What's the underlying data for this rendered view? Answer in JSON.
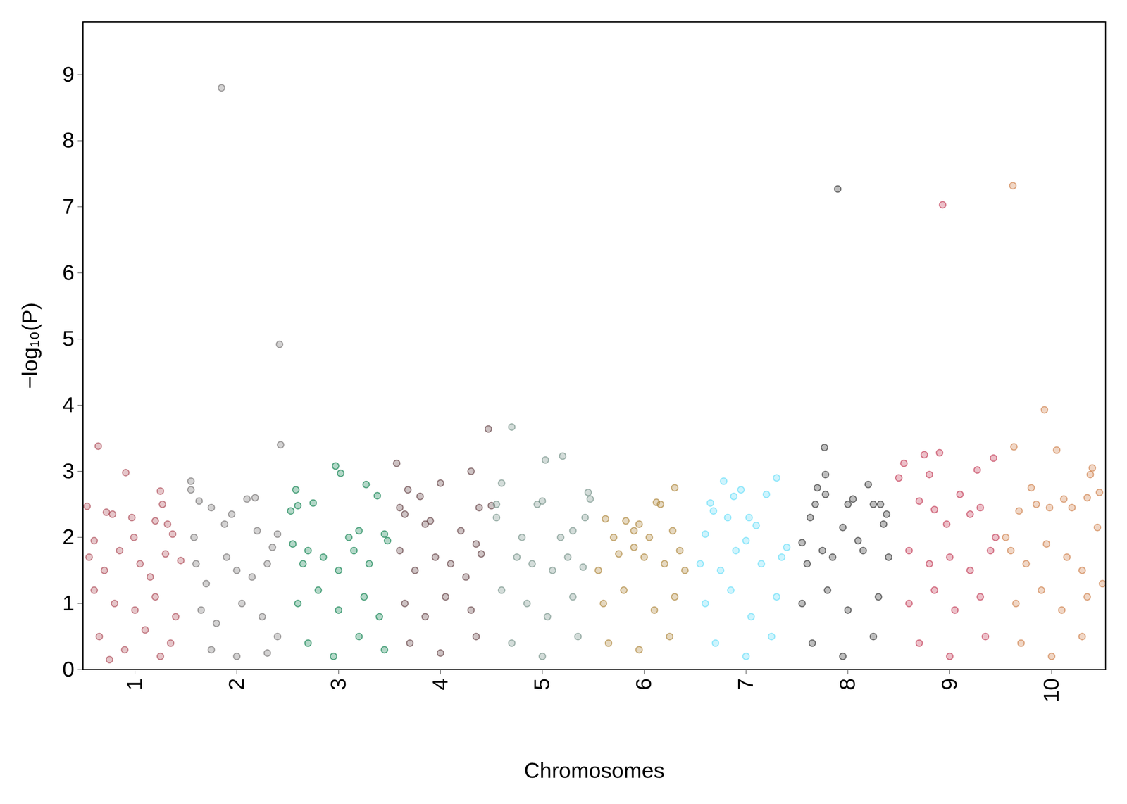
{
  "chart_data": {
    "type": "scatter",
    "x_label": "Chromosomes",
    "y_label": "−log₁₀(P)",
    "xlim": [
      0.49,
      10.53
    ],
    "xticks": [
      1,
      2,
      3,
      4,
      5,
      6,
      7,
      8,
      9,
      10
    ],
    "ylim": [
      0,
      9.8
    ],
    "yticks": [
      0,
      1,
      2,
      3,
      4,
      5,
      6,
      7,
      8,
      9
    ],
    "grid": false,
    "marker": "circle",
    "series": [
      {
        "color": "#a8404c",
        "points": [
          [
            0.53,
            2.47
          ],
          [
            0.64,
            3.38
          ],
          [
            0.6,
            1.95
          ],
          [
            0.72,
            2.38
          ],
          [
            0.78,
            2.35
          ],
          [
            0.91,
            2.98
          ],
          [
            0.97,
            2.3
          ],
          [
            0.99,
            2.0
          ],
          [
            1.25,
            2.7
          ],
          [
            1.27,
            2.5
          ],
          [
            1.2,
            2.25
          ],
          [
            1.32,
            2.2
          ],
          [
            1.37,
            2.05
          ],
          [
            0.55,
            1.7
          ],
          [
            0.7,
            1.5
          ],
          [
            0.85,
            1.8
          ],
          [
            1.05,
            1.6
          ],
          [
            1.15,
            1.4
          ],
          [
            1.3,
            1.75
          ],
          [
            1.45,
            1.65
          ],
          [
            0.6,
            1.2
          ],
          [
            0.8,
            1.0
          ],
          [
            1.0,
            0.9
          ],
          [
            1.2,
            1.1
          ],
          [
            1.4,
            0.8
          ],
          [
            0.65,
            0.5
          ],
          [
            0.9,
            0.3
          ],
          [
            1.1,
            0.6
          ],
          [
            1.35,
            0.4
          ],
          [
            0.75,
            0.15
          ],
          [
            1.25,
            0.2
          ]
        ]
      },
      {
        "color": "#6e6a6b",
        "points": [
          [
            1.55,
            2.85
          ],
          [
            1.55,
            2.72
          ],
          [
            1.63,
            2.55
          ],
          [
            1.58,
            2.0
          ],
          [
            1.75,
            2.45
          ],
          [
            1.85,
            8.8
          ],
          [
            1.88,
            2.2
          ],
          [
            1.95,
            2.35
          ],
          [
            2.1,
            2.58
          ],
          [
            2.18,
            2.6
          ],
          [
            2.2,
            2.1
          ],
          [
            2.35,
            1.85
          ],
          [
            2.42,
            4.92
          ],
          [
            2.43,
            3.4
          ],
          [
            2.4,
            2.05
          ],
          [
            1.6,
            1.6
          ],
          [
            1.7,
            1.3
          ],
          [
            1.9,
            1.7
          ],
          [
            2.0,
            1.5
          ],
          [
            2.15,
            1.4
          ],
          [
            2.3,
            1.6
          ],
          [
            1.65,
            0.9
          ],
          [
            1.8,
            0.7
          ],
          [
            2.05,
            1.0
          ],
          [
            2.25,
            0.8
          ],
          [
            2.4,
            0.5
          ],
          [
            1.75,
            0.3
          ],
          [
            2.0,
            0.2
          ],
          [
            2.3,
            0.25
          ]
        ]
      },
      {
        "color": "#007a45",
        "points": [
          [
            2.53,
            2.4
          ],
          [
            2.58,
            2.72
          ],
          [
            2.6,
            2.48
          ],
          [
            2.7,
            1.8
          ],
          [
            2.75,
            2.52
          ],
          [
            2.97,
            3.08
          ],
          [
            3.02,
            2.97
          ],
          [
            3.1,
            2.0
          ],
          [
            3.27,
            2.8
          ],
          [
            3.38,
            2.63
          ],
          [
            3.45,
            2.05
          ],
          [
            3.2,
            2.1
          ],
          [
            2.55,
            1.9
          ],
          [
            2.65,
            1.6
          ],
          [
            2.85,
            1.7
          ],
          [
            3.0,
            1.5
          ],
          [
            3.15,
            1.8
          ],
          [
            3.3,
            1.6
          ],
          [
            3.48,
            1.95
          ],
          [
            2.6,
            1.0
          ],
          [
            2.8,
            1.2
          ],
          [
            3.0,
            0.9
          ],
          [
            3.25,
            1.1
          ],
          [
            3.4,
            0.8
          ],
          [
            2.7,
            0.4
          ],
          [
            2.95,
            0.2
          ],
          [
            3.2,
            0.5
          ],
          [
            3.45,
            0.3
          ]
        ]
      },
      {
        "color": "#5a3538",
        "points": [
          [
            3.57,
            3.12
          ],
          [
            3.6,
            2.45
          ],
          [
            3.65,
            2.35
          ],
          [
            3.68,
            2.72
          ],
          [
            3.8,
            2.62
          ],
          [
            3.85,
            2.2
          ],
          [
            3.9,
            2.25
          ],
          [
            4.0,
            2.82
          ],
          [
            4.3,
            3.0
          ],
          [
            4.38,
            2.45
          ],
          [
            4.47,
            3.64
          ],
          [
            4.5,
            2.48
          ],
          [
            4.2,
            2.1
          ],
          [
            4.35,
            1.9
          ],
          [
            3.6,
            1.8
          ],
          [
            3.75,
            1.5
          ],
          [
            3.95,
            1.7
          ],
          [
            4.1,
            1.6
          ],
          [
            4.25,
            1.4
          ],
          [
            4.4,
            1.75
          ],
          [
            3.65,
            1.0
          ],
          [
            3.85,
            0.8
          ],
          [
            4.05,
            1.1
          ],
          [
            4.3,
            0.9
          ],
          [
            3.7,
            0.4
          ],
          [
            4.0,
            0.25
          ],
          [
            4.35,
            0.5
          ]
        ]
      },
      {
        "color": "#6e8c82",
        "points": [
          [
            4.55,
            2.5
          ],
          [
            4.6,
            2.82
          ],
          [
            4.7,
            3.67
          ],
          [
            4.55,
            2.3
          ],
          [
            4.8,
            2.0
          ],
          [
            4.75,
            1.7
          ],
          [
            4.95,
            2.5
          ],
          [
            5.0,
            2.55
          ],
          [
            5.03,
            3.17
          ],
          [
            5.2,
            3.23
          ],
          [
            5.18,
            2.0
          ],
          [
            5.3,
            2.1
          ],
          [
            5.45,
            2.68
          ],
          [
            5.47,
            2.58
          ],
          [
            5.42,
            2.3
          ],
          [
            4.9,
            1.6
          ],
          [
            5.1,
            1.5
          ],
          [
            5.25,
            1.7
          ],
          [
            5.4,
            1.55
          ],
          [
            4.6,
            1.2
          ],
          [
            4.85,
            1.0
          ],
          [
            5.05,
            0.8
          ],
          [
            5.3,
            1.1
          ],
          [
            4.7,
            0.4
          ],
          [
            5.0,
            0.2
          ],
          [
            5.35,
            0.5
          ]
        ]
      },
      {
        "color": "#a87e2e",
        "points": [
          [
            5.62,
            2.28
          ],
          [
            5.7,
            2.0
          ],
          [
            5.82,
            2.25
          ],
          [
            5.9,
            2.1
          ],
          [
            5.95,
            2.2
          ],
          [
            6.05,
            2.0
          ],
          [
            6.12,
            2.53
          ],
          [
            6.16,
            2.5
          ],
          [
            6.3,
            2.75
          ],
          [
            6.28,
            2.1
          ],
          [
            6.35,
            1.8
          ],
          [
            5.55,
            1.5
          ],
          [
            5.75,
            1.75
          ],
          [
            5.9,
            1.85
          ],
          [
            6.0,
            1.7
          ],
          [
            6.2,
            1.6
          ],
          [
            6.4,
            1.5
          ],
          [
            5.6,
            1.0
          ],
          [
            5.8,
            1.2
          ],
          [
            6.1,
            0.9
          ],
          [
            6.3,
            1.1
          ],
          [
            5.65,
            0.4
          ],
          [
            5.95,
            0.3
          ],
          [
            6.25,
            0.5
          ]
        ]
      },
      {
        "color": "#5ddcf8",
        "points": [
          [
            6.6,
            2.05
          ],
          [
            6.65,
            2.52
          ],
          [
            6.68,
            2.4
          ],
          [
            6.78,
            2.85
          ],
          [
            6.82,
            2.3
          ],
          [
            6.88,
            2.62
          ],
          [
            6.95,
            2.72
          ],
          [
            7.0,
            1.95
          ],
          [
            7.03,
            2.3
          ],
          [
            7.2,
            2.65
          ],
          [
            7.3,
            2.9
          ],
          [
            7.1,
            2.18
          ],
          [
            7.4,
            1.85
          ],
          [
            6.55,
            1.6
          ],
          [
            6.75,
            1.5
          ],
          [
            6.9,
            1.8
          ],
          [
            7.15,
            1.6
          ],
          [
            7.35,
            1.7
          ],
          [
            6.6,
            1.0
          ],
          [
            6.85,
            1.2
          ],
          [
            7.05,
            0.8
          ],
          [
            7.3,
            1.1
          ],
          [
            6.7,
            0.4
          ],
          [
            7.0,
            0.2
          ],
          [
            7.25,
            0.5
          ]
        ]
      },
      {
        "color": "#262626",
        "points": [
          [
            7.55,
            1.92
          ],
          [
            7.63,
            2.3
          ],
          [
            7.7,
            2.75
          ],
          [
            7.68,
            2.5
          ],
          [
            7.77,
            3.36
          ],
          [
            7.78,
            2.95
          ],
          [
            7.78,
            2.65
          ],
          [
            7.9,
            7.27
          ],
          [
            7.95,
            2.15
          ],
          [
            8.0,
            2.5
          ],
          [
            8.05,
            2.58
          ],
          [
            8.2,
            2.8
          ],
          [
            8.25,
            2.5
          ],
          [
            8.32,
            2.5
          ],
          [
            8.35,
            2.2
          ],
          [
            8.38,
            2.35
          ],
          [
            8.1,
            1.95
          ],
          [
            7.6,
            1.6
          ],
          [
            7.75,
            1.8
          ],
          [
            7.85,
            1.7
          ],
          [
            8.15,
            1.8
          ],
          [
            8.4,
            1.7
          ],
          [
            7.55,
            1.0
          ],
          [
            7.8,
            1.2
          ],
          [
            8.0,
            0.9
          ],
          [
            8.3,
            1.1
          ],
          [
            7.65,
            0.4
          ],
          [
            7.95,
            0.2
          ],
          [
            8.25,
            0.5
          ]
        ]
      },
      {
        "color": "#c0304c",
        "points": [
          [
            8.5,
            2.9
          ],
          [
            8.55,
            3.12
          ],
          [
            8.7,
            2.55
          ],
          [
            8.75,
            3.25
          ],
          [
            8.8,
            2.95
          ],
          [
            8.85,
            2.42
          ],
          [
            8.9,
            3.28
          ],
          [
            8.93,
            7.03
          ],
          [
            8.97,
            2.2
          ],
          [
            9.1,
            2.65
          ],
          [
            9.2,
            2.35
          ],
          [
            9.27,
            3.02
          ],
          [
            9.3,
            2.45
          ],
          [
            9.43,
            3.2
          ],
          [
            9.45,
            2.0
          ],
          [
            8.6,
            1.8
          ],
          [
            8.8,
            1.6
          ],
          [
            9.0,
            1.7
          ],
          [
            9.2,
            1.5
          ],
          [
            9.4,
            1.8
          ],
          [
            8.6,
            1.0
          ],
          [
            8.85,
            1.2
          ],
          [
            9.05,
            0.9
          ],
          [
            9.3,
            1.1
          ],
          [
            8.7,
            0.4
          ],
          [
            9.0,
            0.2
          ],
          [
            9.35,
            0.5
          ]
        ]
      },
      {
        "color": "#cc7840",
        "points": [
          [
            9.55,
            2.0
          ],
          [
            9.62,
            7.32
          ],
          [
            9.63,
            3.37
          ],
          [
            9.68,
            2.4
          ],
          [
            9.8,
            2.75
          ],
          [
            9.85,
            2.5
          ],
          [
            9.93,
            3.93
          ],
          [
            9.98,
            2.45
          ],
          [
            10.05,
            3.32
          ],
          [
            10.12,
            2.58
          ],
          [
            10.2,
            2.45
          ],
          [
            10.35,
            2.6
          ],
          [
            10.38,
            2.95
          ],
          [
            10.4,
            3.05
          ],
          [
            10.47,
            2.68
          ],
          [
            10.45,
            2.15
          ],
          [
            9.6,
            1.8
          ],
          [
            9.75,
            1.6
          ],
          [
            9.95,
            1.9
          ],
          [
            10.15,
            1.7
          ],
          [
            10.3,
            1.5
          ],
          [
            10.5,
            1.3
          ],
          [
            9.65,
            1.0
          ],
          [
            9.9,
            1.2
          ],
          [
            10.1,
            0.9
          ],
          [
            10.35,
            1.1
          ],
          [
            9.7,
            0.4
          ],
          [
            10.0,
            0.2
          ],
          [
            10.3,
            0.5
          ]
        ]
      }
    ]
  }
}
